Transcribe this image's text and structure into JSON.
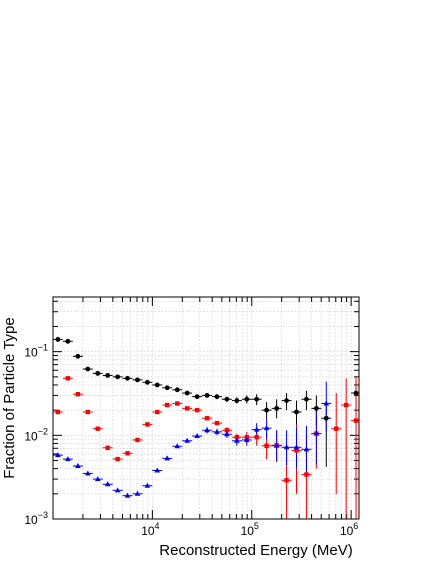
{
  "chart_data": {
    "type": "scatter",
    "title": "",
    "xlabel": "Reconstructed Energy (MeV)",
    "ylabel": "Fraction of Particle Type",
    "x_scale": "log",
    "y_scale": "log",
    "xlim": [
      1000,
      1200000
    ],
    "ylim": [
      0.001,
      0.45
    ],
    "grid": true,
    "x_ticks": [
      {
        "value": 10000,
        "base": "10",
        "exp": "4"
      },
      {
        "value": 100000,
        "base": "10",
        "exp": "5"
      },
      {
        "value": 1000000,
        "base": "10",
        "exp": "6"
      }
    ],
    "y_ticks": [
      {
        "value": 0.1,
        "base": "10",
        "exp": "−1"
      },
      {
        "value": 0.01,
        "base": "10",
        "exp": "−2"
      },
      {
        "value": 0.001,
        "base": "10",
        "exp": "−3"
      }
    ],
    "series": [
      {
        "color": "#000000",
        "marker": "circle",
        "points": [
          {
            "x": 1120,
            "y": 0.14
          },
          {
            "x": 1410,
            "y": 0.133
          },
          {
            "x": 1780,
            "y": 0.088
          },
          {
            "x": 2240,
            "y": 0.062
          },
          {
            "x": 2820,
            "y": 0.055
          },
          {
            "x": 3550,
            "y": 0.052
          },
          {
            "x": 4470,
            "y": 0.05
          },
          {
            "x": 5620,
            "y": 0.048
          },
          {
            "x": 7080,
            "y": 0.046
          },
          {
            "x": 8910,
            "y": 0.043
          },
          {
            "x": 11200,
            "y": 0.04
          },
          {
            "x": 14100,
            "y": 0.037
          },
          {
            "x": 17800,
            "y": 0.035
          },
          {
            "x": 22400,
            "y": 0.032
          },
          {
            "x": 28200,
            "y": 0.029
          },
          {
            "x": 35500,
            "y": 0.03,
            "err_hi": 0.0315,
            "err_lo": 0.0285
          },
          {
            "x": 44700,
            "y": 0.029,
            "err_hi": 0.031,
            "err_lo": 0.027
          },
          {
            "x": 56200,
            "y": 0.027,
            "err_hi": 0.029,
            "err_lo": 0.025
          },
          {
            "x": 70800,
            "y": 0.026,
            "err_hi": 0.0285,
            "err_lo": 0.024
          },
          {
            "x": 89100,
            "y": 0.027,
            "err_hi": 0.03,
            "err_lo": 0.024
          },
          {
            "x": 112000,
            "y": 0.027,
            "err_hi": 0.031,
            "err_lo": 0.023
          },
          {
            "x": 141000,
            "y": 0.02,
            "err_hi": 0.025,
            "err_lo": 0.016
          },
          {
            "x": 178000,
            "y": 0.021,
            "err_hi": 0.027,
            "err_lo": 0.016
          },
          {
            "x": 224000,
            "y": 0.026,
            "err_hi": 0.032,
            "err_lo": 0.02
          },
          {
            "x": 282000,
            "y": 0.019,
            "err_hi": 0.026,
            "err_lo": 0.013
          },
          {
            "x": 355000,
            "y": 0.027,
            "err_hi": 0.034,
            "err_lo": 0.02
          },
          {
            "x": 447000,
            "y": 0.021,
            "err_hi": 0.03,
            "err_lo": 0.013
          },
          {
            "x": 562000,
            "y": 0.016,
            "err_hi": 0.025,
            "err_lo": 0.0042
          },
          {
            "x": 1120000,
            "y": 0.032,
            "err_hi": 0.044,
            "err_lo": 0.02
          }
        ]
      },
      {
        "color": "#ff0000",
        "marker": "square",
        "points": [
          {
            "x": 1120,
            "y": 0.019
          },
          {
            "x": 1410,
            "y": 0.048
          },
          {
            "x": 1780,
            "y": 0.031
          },
          {
            "x": 2240,
            "y": 0.019
          },
          {
            "x": 2820,
            "y": 0.012
          },
          {
            "x": 3550,
            "y": 0.0071
          },
          {
            "x": 4470,
            "y": 0.0052
          },
          {
            "x": 5620,
            "y": 0.0061
          },
          {
            "x": 7080,
            "y": 0.0088
          },
          {
            "x": 8910,
            "y": 0.0135
          },
          {
            "x": 11200,
            "y": 0.019
          },
          {
            "x": 14100,
            "y": 0.023
          },
          {
            "x": 17800,
            "y": 0.024
          },
          {
            "x": 22400,
            "y": 0.021
          },
          {
            "x": 28200,
            "y": 0.02
          },
          {
            "x": 35500,
            "y": 0.016
          },
          {
            "x": 44700,
            "y": 0.014
          },
          {
            "x": 56200,
            "y": 0.0115,
            "err_hi": 0.0125,
            "err_lo": 0.0105
          },
          {
            "x": 70800,
            "y": 0.0095,
            "err_hi": 0.0105,
            "err_lo": 0.0085
          },
          {
            "x": 89100,
            "y": 0.0095,
            "err_hi": 0.011,
            "err_lo": 0.008
          },
          {
            "x": 112000,
            "y": 0.0095,
            "err_hi": 0.012,
            "err_lo": 0.0075
          },
          {
            "x": 141000,
            "y": 0.0075,
            "err_hi": 0.0105,
            "err_lo": 0.0052
          },
          {
            "x": 178000,
            "y": 0.0076,
            "err_hi": 0.0115,
            "err_lo": 0.005
          },
          {
            "x": 224000,
            "y": 0.0029,
            "err_hi": 0.0078,
            "err_lo": 0.001
          },
          {
            "x": 282000,
            "y": 0.0066,
            "err_hi": 0.0135,
            "err_lo": 0.002
          },
          {
            "x": 355000,
            "y": 0.0034,
            "err_hi": 0.0105,
            "err_lo": 0.001
          },
          {
            "x": 447000,
            "y": 0.0105,
            "err_hi": 0.021,
            "err_lo": 0.004
          },
          {
            "x": 708000,
            "y": 0.012,
            "err_hi": 0.032,
            "err_lo": 0.002
          },
          {
            "x": 891000,
            "y": 0.023,
            "err_hi": 0.048,
            "err_lo": 0.001
          },
          {
            "x": 1120000,
            "y": 0.015,
            "err_hi": 0.05,
            "err_lo": 0.001
          }
        ]
      },
      {
        "color": "#0000ff",
        "marker": "triangle",
        "points": [
          {
            "x": 1120,
            "y": 0.0058
          },
          {
            "x": 1410,
            "y": 0.0052
          },
          {
            "x": 1780,
            "y": 0.0043
          },
          {
            "x": 2240,
            "y": 0.0035
          },
          {
            "x": 2820,
            "y": 0.003
          },
          {
            "x": 3550,
            "y": 0.0026
          },
          {
            "x": 4470,
            "y": 0.0022
          },
          {
            "x": 5620,
            "y": 0.0019
          },
          {
            "x": 7080,
            "y": 0.002
          },
          {
            "x": 8910,
            "y": 0.0025
          },
          {
            "x": 11200,
            "y": 0.0038
          },
          {
            "x": 14100,
            "y": 0.0053
          },
          {
            "x": 17800,
            "y": 0.0074
          },
          {
            "x": 22400,
            "y": 0.0086
          },
          {
            "x": 28200,
            "y": 0.0098
          },
          {
            "x": 35500,
            "y": 0.0115,
            "err_hi": 0.0125,
            "err_lo": 0.0105
          },
          {
            "x": 44700,
            "y": 0.011,
            "err_hi": 0.012,
            "err_lo": 0.01
          },
          {
            "x": 56200,
            "y": 0.0103,
            "err_hi": 0.0113,
            "err_lo": 0.0093
          },
          {
            "x": 70800,
            "y": 0.0086,
            "err_hi": 0.0097,
            "err_lo": 0.0075
          },
          {
            "x": 89100,
            "y": 0.0088,
            "err_hi": 0.0102,
            "err_lo": 0.0075
          },
          {
            "x": 112000,
            "y": 0.0117,
            "err_hi": 0.014,
            "err_lo": 0.0095
          },
          {
            "x": 141000,
            "y": 0.0122,
            "err_hi": 0.016,
            "err_lo": 0.009
          },
          {
            "x": 178000,
            "y": 0.0075,
            "err_hi": 0.0115,
            "err_lo": 0.0048
          },
          {
            "x": 224000,
            "y": 0.0072,
            "err_hi": 0.0115,
            "err_lo": 0.0044
          },
          {
            "x": 282000,
            "y": 0.0072,
            "err_hi": 0.0125,
            "err_lo": 0.004
          },
          {
            "x": 355000,
            "y": 0.0068,
            "err_hi": 0.013,
            "err_lo": 0.0032
          },
          {
            "x": 447000,
            "y": 0.0105,
            "err_hi": 0.021,
            "err_lo": 0.0045
          },
          {
            "x": 562000,
            "y": 0.024,
            "err_hi": 0.044,
            "err_lo": 0.011
          }
        ]
      }
    ]
  }
}
